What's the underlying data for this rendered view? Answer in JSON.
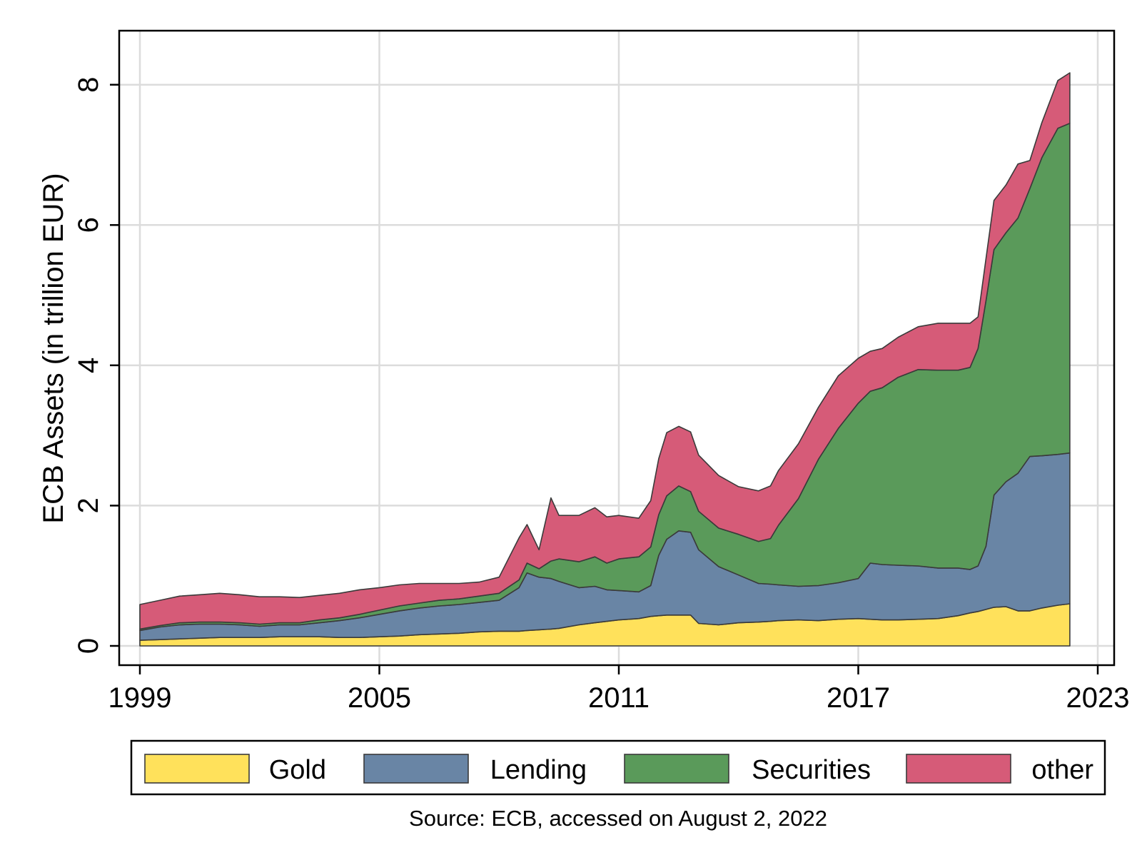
{
  "chart_data": {
    "type": "area",
    "stacked": true,
    "title": "",
    "xlabel": "",
    "ylabel": "ECB Assets (in trillion EUR)",
    "xlim": [
      1999,
      2023
    ],
    "ylim": [
      0,
      8.75
    ],
    "x_ticks": [
      1999,
      2005,
      2011,
      2017,
      2023
    ],
    "y_ticks": [
      0,
      2,
      4,
      6,
      8
    ],
    "grid": true,
    "legend_position": "bottom",
    "source_note": "Source: ECB, accessed on August 2, 2022",
    "x": [
      1999,
      1999.5,
      2000,
      2000.5,
      2001,
      2001.5,
      2002,
      2002.5,
      2003,
      2003.5,
      2004,
      2004.5,
      2005,
      2005.5,
      2006,
      2006.5,
      2007,
      2007.5,
      2008,
      2008.5,
      2008.7,
      2009,
      2009.3,
      2009.5,
      2010,
      2010.4,
      2010.7,
      2011,
      2011.5,
      2011.8,
      2012,
      2012.2,
      2012.5,
      2012.8,
      2013,
      2013.5,
      2014,
      2014.5,
      2014.8,
      2015,
      2015.5,
      2016,
      2016.5,
      2017,
      2017.3,
      2017.6,
      2018,
      2018.5,
      2019,
      2019.5,
      2019.8,
      2020,
      2020.2,
      2020.4,
      2020.7,
      2021,
      2021.3,
      2021.6,
      2022,
      2022.3
    ],
    "series": [
      {
        "name": "Gold",
        "color": "#ffe15b",
        "values": [
          0.08,
          0.09,
          0.1,
          0.11,
          0.12,
          0.12,
          0.12,
          0.13,
          0.13,
          0.13,
          0.12,
          0.12,
          0.13,
          0.14,
          0.16,
          0.17,
          0.18,
          0.2,
          0.21,
          0.21,
          0.22,
          0.23,
          0.24,
          0.25,
          0.3,
          0.33,
          0.35,
          0.37,
          0.39,
          0.42,
          0.43,
          0.44,
          0.44,
          0.44,
          0.32,
          0.3,
          0.33,
          0.34,
          0.35,
          0.36,
          0.37,
          0.36,
          0.38,
          0.39,
          0.38,
          0.37,
          0.37,
          0.38,
          0.39,
          0.43,
          0.47,
          0.49,
          0.52,
          0.55,
          0.56,
          0.5,
          0.5,
          0.54,
          0.58,
          0.6
        ]
      },
      {
        "name": "Lending",
        "color": "#6985a5",
        "values": [
          0.14,
          0.18,
          0.2,
          0.2,
          0.19,
          0.18,
          0.16,
          0.17,
          0.17,
          0.2,
          0.24,
          0.28,
          0.32,
          0.36,
          0.38,
          0.4,
          0.41,
          0.42,
          0.44,
          0.62,
          0.82,
          0.75,
          0.72,
          0.67,
          0.53,
          0.52,
          0.45,
          0.42,
          0.38,
          0.44,
          0.86,
          1.08,
          1.2,
          1.18,
          1.05,
          0.83,
          0.68,
          0.55,
          0.53,
          0.51,
          0.48,
          0.5,
          0.52,
          0.57,
          0.8,
          0.79,
          0.78,
          0.76,
          0.72,
          0.68,
          0.62,
          0.65,
          0.9,
          1.6,
          1.78,
          1.96,
          2.2,
          2.17,
          2.15,
          2.15
        ]
      },
      {
        "name": "Securities",
        "color": "#5a9a5a",
        "values": [
          0.02,
          0.02,
          0.03,
          0.03,
          0.03,
          0.03,
          0.03,
          0.03,
          0.03,
          0.04,
          0.04,
          0.05,
          0.06,
          0.07,
          0.07,
          0.08,
          0.08,
          0.09,
          0.1,
          0.11,
          0.14,
          0.12,
          0.25,
          0.32,
          0.37,
          0.42,
          0.38,
          0.45,
          0.5,
          0.55,
          0.58,
          0.62,
          0.64,
          0.58,
          0.55,
          0.55,
          0.58,
          0.6,
          0.65,
          0.85,
          1.25,
          1.8,
          2.2,
          2.5,
          2.45,
          2.52,
          2.68,
          2.8,
          2.82,
          2.82,
          2.88,
          3.1,
          3.5,
          3.5,
          3.55,
          3.64,
          3.82,
          4.25,
          4.65,
          4.7
        ]
      },
      {
        "name": "other",
        "color": "#d65b78",
        "values": [
          0.35,
          0.36,
          0.38,
          0.39,
          0.41,
          0.4,
          0.39,
          0.37,
          0.36,
          0.35,
          0.35,
          0.35,
          0.32,
          0.3,
          0.28,
          0.24,
          0.22,
          0.2,
          0.23,
          0.6,
          0.55,
          0.27,
          0.9,
          0.62,
          0.66,
          0.7,
          0.66,
          0.62,
          0.55,
          0.66,
          0.8,
          0.9,
          0.85,
          0.85,
          0.8,
          0.75,
          0.68,
          0.72,
          0.75,
          0.78,
          0.78,
          0.74,
          0.75,
          0.64,
          0.57,
          0.56,
          0.57,
          0.61,
          0.67,
          0.67,
          0.63,
          0.45,
          0.6,
          0.7,
          0.68,
          0.77,
          0.4,
          0.5,
          0.68,
          0.72
        ]
      }
    ]
  }
}
